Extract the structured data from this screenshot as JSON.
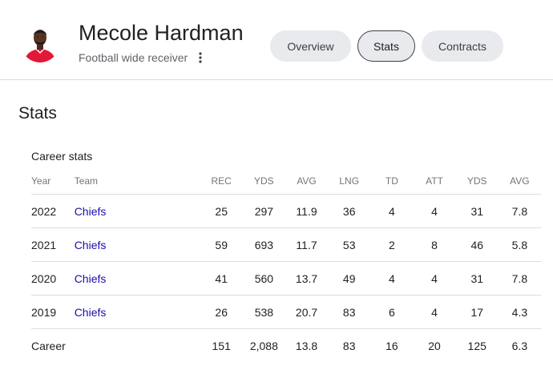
{
  "player": {
    "name": "Mecole Hardman",
    "role": "Football wide receiver"
  },
  "tabs": [
    {
      "label": "Overview",
      "selected": false
    },
    {
      "label": "Stats",
      "selected": true
    },
    {
      "label": "Contracts",
      "selected": false
    }
  ],
  "section_title": "Stats",
  "table": {
    "caption": "Career stats",
    "headers": [
      "Year",
      "Team",
      "REC",
      "YDS",
      "AVG",
      "LNG",
      "TD",
      "ATT",
      "YDS",
      "AVG"
    ],
    "rows": [
      {
        "year": "2022",
        "team": "Chiefs",
        "values": [
          "25",
          "297",
          "11.9",
          "36",
          "4",
          "4",
          "31",
          "7.8"
        ]
      },
      {
        "year": "2021",
        "team": "Chiefs",
        "values": [
          "59",
          "693",
          "11.7",
          "53",
          "2",
          "8",
          "46",
          "5.8"
        ]
      },
      {
        "year": "2020",
        "team": "Chiefs",
        "values": [
          "41",
          "560",
          "13.7",
          "49",
          "4",
          "4",
          "31",
          "7.8"
        ]
      },
      {
        "year": "2019",
        "team": "Chiefs",
        "values": [
          "26",
          "538",
          "20.7",
          "83",
          "6",
          "4",
          "17",
          "4.3"
        ]
      }
    ],
    "total": {
      "label": "Career",
      "values": [
        "151",
        "2,088",
        "13.8",
        "83",
        "16",
        "20",
        "125",
        "6.3"
      ]
    }
  },
  "colors": {
    "link": "#1a0dab",
    "jersey_red": "#e31837",
    "tab_background": "#e8eaed"
  },
  "icons": {
    "more": "more-vert-icon"
  }
}
